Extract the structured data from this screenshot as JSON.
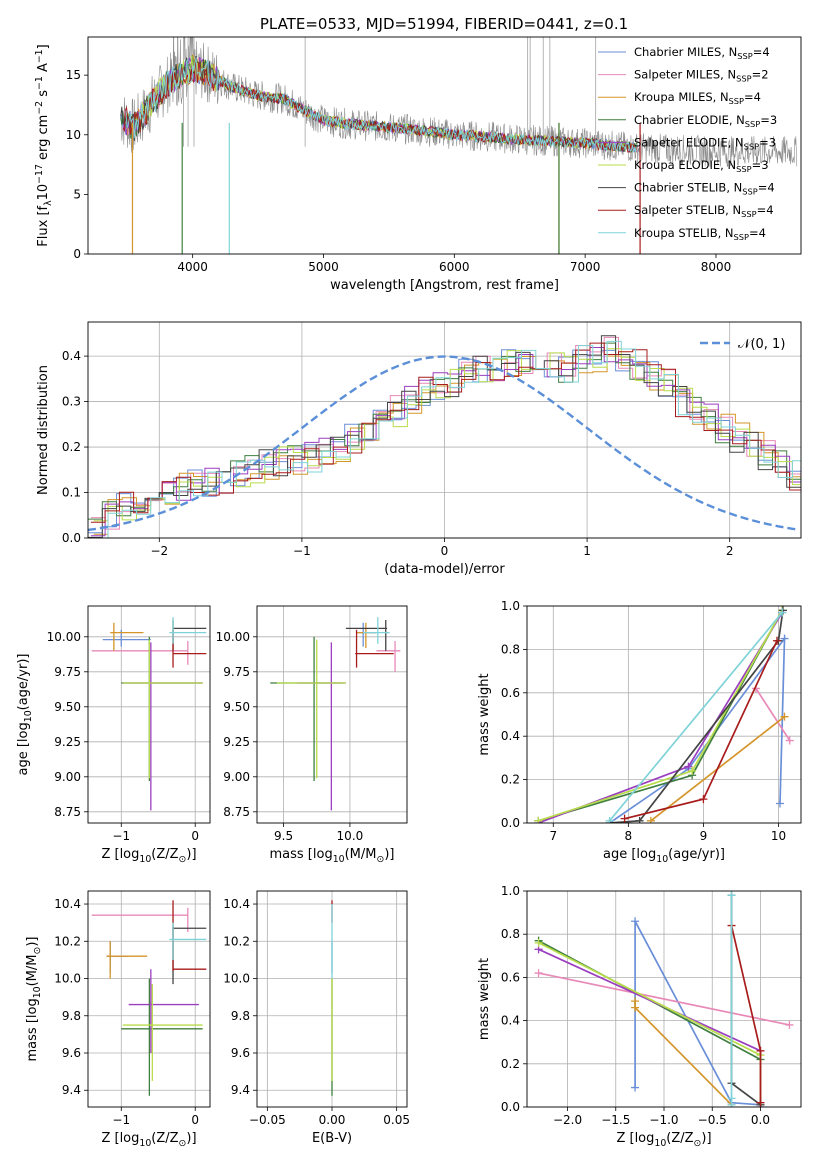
{
  "title": "PLATE=0533, MJD=51994, FIBERID=0441, z=0.1",
  "colors": {
    "Chabrier MILES": "#6a8fd8",
    "Salpeter MILES": "#e889b8",
    "Kroupa MILES": "#d4952a",
    "Chabrier ELODIE": "#3f7f3f",
    "Salpeter ELODIE": "#9b3fc0",
    "Kroupa ELODIE": "#b8dc4a",
    "Chabrier STELIB": "#444444",
    "Salpeter STELIB": "#a81c1c",
    "Kroupa STELIB": "#7fd3d8",
    "normal": "#5b8fd8",
    "data": "#8a8a8a"
  },
  "chart_data": [
    {
      "id": "spectrum",
      "type": "line",
      "xlabel": "wavelength [Angstrom, rest frame]",
      "ylabel_parts": [
        "Flux [f",
        "λ",
        "10",
        "−17",
        " erg cm",
        "−2",
        " s",
        "−1",
        " A",
        "−1",
        "]"
      ],
      "xlim": [
        3200,
        8650
      ],
      "ylim": [
        0,
        18.2
      ],
      "xticks": [
        4000,
        5000,
        6000,
        7000,
        8000
      ],
      "yticks": [
        0,
        5,
        10,
        15
      ],
      "grid": false,
      "legend": "top-right",
      "legend_entries": [
        {
          "label": "Chabrier MILES",
          "n": "4"
        },
        {
          "label": "Salpeter MILES",
          "n": "2"
        },
        {
          "label": "Kroupa MILES",
          "n": "4"
        },
        {
          "label": "Chabrier ELODIE",
          "n": "3"
        },
        {
          "label": "Salpeter ELODIE",
          "n": "3"
        },
        {
          "label": "Kroupa ELODIE",
          "n": "3"
        },
        {
          "label": "Chabrier STELIB",
          "n": "4"
        },
        {
          "label": "Salpeter STELIB",
          "n": "4"
        },
        {
          "label": "Kroupa STELIB",
          "n": "4"
        }
      ],
      "legend_subscript": "SSP",
      "model_x": [
        3450,
        3550,
        3700,
        3800,
        3900,
        4000,
        4100,
        4300,
        4500,
        4700,
        4860,
        5000,
        5200,
        5500,
        5800,
        6000,
        6300,
        6500,
        6700,
        7000,
        7300,
        7600,
        8000
      ],
      "model_y": [
        11.5,
        10.6,
        12.8,
        14.2,
        15.0,
        15.6,
        15.2,
        14.0,
        13.3,
        13.0,
        12.0,
        11.2,
        10.9,
        10.6,
        10.3,
        10.0,
        9.8,
        9.6,
        9.5,
        9.3,
        9.0,
        8.8,
        8.6
      ]
    },
    {
      "id": "residuals",
      "type": "histogram",
      "xlabel": "(data-model)/error",
      "ylabel": "Normed distribution",
      "xlim": [
        -2.5,
        2.5
      ],
      "ylim": [
        0,
        0.475
      ],
      "xticks": [
        -2,
        -1,
        0,
        1,
        2
      ],
      "xtick_labels": [
        "−2",
        "−1",
        "0",
        "1",
        "2"
      ],
      "yticks": [
        0.0,
        0.1,
        0.2,
        0.3,
        0.4
      ],
      "ytick_labels": [
        "0.0",
        "0.1",
        "0.2",
        "0.3",
        "0.4"
      ],
      "grid": true,
      "legend": "top-right",
      "normal_label": "𝒩(0, 1)",
      "bin_width": 0.1,
      "bin_start": -2.5,
      "base_hist": [
        0.03,
        0.05,
        0.07,
        0.08,
        0.09,
        0.1,
        0.11,
        0.12,
        0.12,
        0.13,
        0.14,
        0.15,
        0.16,
        0.17,
        0.17,
        0.18,
        0.19,
        0.2,
        0.22,
        0.24,
        0.26,
        0.28,
        0.3,
        0.32,
        0.33,
        0.34,
        0.36,
        0.37,
        0.38,
        0.39,
        0.39,
        0.4,
        0.38,
        0.37,
        0.39,
        0.4,
        0.41,
        0.4,
        0.38,
        0.36,
        0.34,
        0.3,
        0.28,
        0.26,
        0.24,
        0.22,
        0.2,
        0.18,
        0.16,
        0.14,
        0.13,
        0.12,
        0.11,
        0.1,
        0.09,
        0.08,
        0.07,
        0.06,
        0.05,
        0.04,
        0.035,
        0.035,
        0.03,
        0.03,
        0.025,
        0.02,
        0.02,
        0.02,
        0.015,
        0.015
      ]
    },
    {
      "id": "age-Z",
      "type": "errorbar",
      "xlabel_parts": [
        "Z [log",
        "10",
        "(Z/Z",
        "⊙",
        ")]"
      ],
      "ylabel_parts": [
        "age  [log",
        "10",
        "(age/yr)]"
      ],
      "xlim": [
        -1.45,
        0.2
      ],
      "ylim": [
        8.67,
        10.22
      ],
      "xticks": [
        -1,
        0
      ],
      "xtick_labels": [
        "−1",
        "0"
      ],
      "yticks": [
        8.75,
        9.0,
        9.25,
        9.5,
        9.75,
        10.0
      ],
      "ytick_labels": [
        "8.75",
        "9.00",
        "9.25",
        "9.50",
        "9.75",
        "10.00"
      ],
      "grid": true,
      "points": [
        {
          "m": "Chabrier MILES",
          "x": -1.0,
          "xe": [
            -1.25,
            -0.6
          ],
          "y": 9.98,
          "ye": [
            9.93,
            10.05
          ]
        },
        {
          "m": "Salpeter MILES",
          "x": -0.1,
          "xe": [
            -1.4,
            -0.1
          ],
          "y": 9.9,
          "ye": [
            9.8,
            9.97
          ]
        },
        {
          "m": "Kroupa MILES",
          "x": -1.1,
          "xe": [
            -1.15,
            -0.7
          ],
          "y": 10.03,
          "ye": [
            9.9,
            10.1
          ]
        },
        {
          "m": "Chabrier ELODIE",
          "x": -0.62,
          "xe": [
            -1.0,
            0.1
          ],
          "y": 9.67,
          "ye": [
            8.97,
            10.0
          ]
        },
        {
          "m": "Salpeter ELODIE",
          "x": -0.6,
          "xe": [
            -0.98,
            0.1
          ],
          "y": 9.67,
          "ye": [
            8.76,
            9.96
          ]
        },
        {
          "m": "Kroupa ELODIE",
          "x": -0.62,
          "xe": [
            -0.98,
            0.1
          ],
          "y": 9.67,
          "ye": [
            8.99,
            9.98
          ]
        },
        {
          "m": "Chabrier STELIB",
          "x": -0.3,
          "xe": [
            -0.3,
            0.15
          ],
          "y": 10.06,
          "ye": [
            9.9,
            10.12
          ]
        },
        {
          "m": "Salpeter STELIB",
          "x": -0.3,
          "xe": [
            -0.3,
            0.15
          ],
          "y": 9.88,
          "ye": [
            9.78,
            10.05
          ]
        },
        {
          "m": "Kroupa STELIB",
          "x": -0.3,
          "xe": [
            -0.35,
            0.15
          ],
          "y": 10.03,
          "ye": [
            9.95,
            10.14
          ]
        }
      ]
    },
    {
      "id": "age-mass",
      "type": "errorbar",
      "xlabel_parts": [
        "mass [log",
        "10",
        "(M/M",
        "⊙",
        ")]"
      ],
      "ylabel_parts": [],
      "xlim": [
        9.3,
        10.43
      ],
      "ylim": [
        8.67,
        10.22
      ],
      "xticks": [
        9.5,
        10.0
      ],
      "xtick_labels": [
        "9.5",
        "10.0"
      ],
      "yticks": [
        8.75,
        9.0,
        9.25,
        9.5,
        9.75,
        10.0
      ],
      "ytick_labels": [
        "8.75",
        "9.00",
        "9.25",
        "9.50",
        "9.75",
        "10.00"
      ],
      "grid": true,
      "points": [
        {
          "m": "Chabrier MILES",
          "x": 10.1,
          "xe": [
            10.05,
            10.2
          ],
          "y": 10.03,
          "ye": [
            9.93,
            10.1
          ]
        },
        {
          "m": "Salpeter MILES",
          "x": 10.34,
          "xe": [
            10.2,
            10.38
          ],
          "y": 9.9,
          "ye": [
            9.75,
            9.97
          ]
        },
        {
          "m": "Kroupa MILES",
          "x": 10.12,
          "xe": [
            10.05,
            10.2
          ],
          "y": 10.03,
          "ye": [
            9.92,
            10.1
          ]
        },
        {
          "m": "Chabrier ELODIE",
          "x": 9.73,
          "xe": [
            9.4,
            9.95
          ],
          "y": 9.67,
          "ye": [
            8.97,
            10.0
          ]
        },
        {
          "m": "Salpeter ELODIE",
          "x": 9.86,
          "xe": [
            9.6,
            9.97
          ],
          "y": 9.67,
          "ye": [
            8.76,
            9.96
          ]
        },
        {
          "m": "Kroupa ELODIE",
          "x": 9.75,
          "xe": [
            9.45,
            9.97
          ],
          "y": 9.67,
          "ye": [
            8.99,
            9.98
          ]
        },
        {
          "m": "Chabrier STELIB",
          "x": 10.27,
          "xe": [
            9.97,
            10.28
          ],
          "y": 10.06,
          "ye": [
            9.9,
            10.12
          ]
        },
        {
          "m": "Salpeter STELIB",
          "x": 10.05,
          "xe": [
            10.04,
            10.33
          ],
          "y": 9.88,
          "ye": [
            9.78,
            10.05
          ]
        },
        {
          "m": "Kroupa STELIB",
          "x": 10.21,
          "xe": [
            10.1,
            10.3
          ],
          "y": 10.03,
          "ye": [
            9.95,
            10.14
          ]
        }
      ]
    },
    {
      "id": "weight-age",
      "type": "line",
      "xlabel_parts": [
        "age  [log",
        "10",
        "(age/yr)]"
      ],
      "ylabel": "mass weight",
      "xlim": [
        6.65,
        10.3
      ],
      "ylim": [
        0,
        1.0
      ],
      "xticks": [
        7,
        8,
        9,
        10
      ],
      "xtick_labels": [
        "7",
        "8",
        "9",
        "10"
      ],
      "yticks": [
        0.0,
        0.2,
        0.4,
        0.6,
        0.8,
        1.0
      ],
      "ytick_labels": [
        "0.0",
        "0.2",
        "0.4",
        "0.6",
        "0.8",
        "1.0"
      ],
      "grid": true,
      "series": [
        {
          "m": "Chabrier MILES",
          "x": [
            7.75,
            8.8,
            10.08,
            10.02
          ],
          "y": [
            0.0,
            0.25,
            0.85,
            0.09
          ]
        },
        {
          "m": "Salpeter MILES",
          "x": [
            9.7,
            10.15
          ],
          "y": [
            0.62,
            0.38
          ]
        },
        {
          "m": "Kroupa MILES",
          "x": [
            8.3,
            10.08
          ],
          "y": [
            0.01,
            0.49
          ]
        },
        {
          "m": "Chabrier ELODIE",
          "x": [
            6.8,
            8.85,
            10.05
          ],
          "y": [
            0.01,
            0.22,
            0.98
          ]
        },
        {
          "m": "Salpeter ELODIE",
          "x": [
            6.8,
            8.8,
            10.05
          ],
          "y": [
            0.0,
            0.26,
            0.97
          ]
        },
        {
          "m": "Kroupa ELODIE",
          "x": [
            6.8,
            8.85,
            10.05
          ],
          "y": [
            0.01,
            0.24,
            0.98
          ]
        },
        {
          "m": "Chabrier STELIB",
          "x": [
            7.75,
            8.15,
            10.0,
            10.06
          ],
          "y": [
            0.0,
            0.01,
            0.84,
            0.98
          ]
        },
        {
          "m": "Salpeter STELIB",
          "x": [
            7.95,
            9.0,
            9.98
          ],
          "y": [
            0.02,
            0.11,
            0.84
          ]
        },
        {
          "m": "Kroupa STELIB",
          "x": [
            7.75,
            10.05
          ],
          "y": [
            0.01,
            0.97
          ]
        }
      ]
    },
    {
      "id": "mass-Z",
      "type": "errorbar",
      "xlabel_parts": [
        "Z [log",
        "10",
        "(Z/Z",
        "⊙",
        ")]"
      ],
      "ylabel_parts": [
        "mass [log",
        "10",
        "(M/M",
        "⊙",
        ")]"
      ],
      "xlim": [
        -1.45,
        0.2
      ],
      "ylim": [
        9.31,
        10.47
      ],
      "xticks": [
        -1,
        0
      ],
      "xtick_labels": [
        "−1",
        "0"
      ],
      "yticks": [
        9.4,
        9.6,
        9.8,
        10.0,
        10.2,
        10.4
      ],
      "ytick_labels": [
        "9.4",
        "9.6",
        "9.8",
        "10.0",
        "10.2",
        "10.4"
      ],
      "grid": true,
      "points": [
        {
          "m": "Chabrier MILES",
          "x": -1.15,
          "xe": [
            -1.2,
            -0.9
          ],
          "y": 10.12,
          "ye": [
            10.03,
            10.2
          ]
        },
        {
          "m": "Salpeter MILES",
          "x": -0.1,
          "xe": [
            -1.4,
            -0.1
          ],
          "y": 10.34,
          "ye": [
            10.25,
            10.38
          ]
        },
        {
          "m": "Kroupa MILES",
          "x": -1.15,
          "xe": [
            -1.2,
            -0.65
          ],
          "y": 10.12,
          "ye": [
            10.0,
            10.2
          ]
        },
        {
          "m": "Chabrier ELODIE",
          "x": -0.62,
          "xe": [
            -1.0,
            0.1
          ],
          "y": 9.73,
          "ye": [
            9.37,
            10.0
          ]
        },
        {
          "m": "Salpeter ELODIE",
          "x": -0.6,
          "xe": [
            -0.9,
            0.05
          ],
          "y": 9.86,
          "ye": [
            9.6,
            10.05
          ]
        },
        {
          "m": "Kroupa ELODIE",
          "x": -0.58,
          "xe": [
            -0.98,
            0.1
          ],
          "y": 9.75,
          "ye": [
            9.45,
            9.97
          ]
        },
        {
          "m": "Chabrier STELIB",
          "x": -0.3,
          "xe": [
            -0.3,
            0.15
          ],
          "y": 10.27,
          "ye": [
            9.97,
            10.28
          ]
        },
        {
          "m": "Salpeter STELIB",
          "x": -0.3,
          "xe": [
            -0.3,
            0.15
          ],
          "y": 10.05,
          "ye": [
            10.04,
            10.42
          ]
        },
        {
          "m": "Kroupa STELIB",
          "x": -0.3,
          "xe": [
            -0.35,
            0.15
          ],
          "y": 10.21,
          "ye": [
            10.1,
            10.3
          ]
        }
      ]
    },
    {
      "id": "mass-ebv",
      "type": "errorbar",
      "xlabel": "E(B-V)",
      "ylabel_parts": [],
      "xlim": [
        -0.058,
        0.058
      ],
      "ylim": [
        9.31,
        10.47
      ],
      "xticks": [
        -0.05,
        0.0,
        0.05
      ],
      "xtick_labels": [
        "−0.05",
        "0.00",
        "0.05"
      ],
      "yticks": [
        9.4,
        9.6,
        9.8,
        10.0,
        10.2,
        10.4
      ],
      "ytick_labels": [
        "9.4",
        "9.6",
        "9.8",
        "10.0",
        "10.2",
        "10.4"
      ],
      "grid": true,
      "points": [
        {
          "m": "Chabrier MILES",
          "x": 0.0,
          "xe": [
            0.0,
            0.0
          ],
          "y": 10.12,
          "ye": [
            10.03,
            10.2
          ]
        },
        {
          "m": "Chabrier ELODIE",
          "x": 0.0,
          "xe": [
            0.0,
            0.0
          ],
          "y": 9.73,
          "ye": [
            9.37,
            10.0
          ]
        },
        {
          "m": "Kroupa ELODIE",
          "x": 0.0,
          "xe": [
            0.0,
            0.0
          ],
          "y": 9.75,
          "ye": [
            9.45,
            10.0
          ]
        },
        {
          "m": "Salpeter STELIB",
          "x": 0.0,
          "xe": [
            0.0,
            0.0
          ],
          "y": 10.35,
          "ye": [
            10.3,
            10.42
          ]
        },
        {
          "m": "Kroupa STELIB",
          "x": 0.0,
          "xe": [
            0.0,
            0.0
          ],
          "y": 10.21,
          "ye": [
            10.0,
            10.4
          ]
        }
      ]
    },
    {
      "id": "weight-Z",
      "type": "line",
      "xlabel_parts": [
        "Z [log",
        "10",
        "(Z/Z",
        "⊙",
        ")]"
      ],
      "ylabel": "mass weight",
      "xlim": [
        -2.42,
        0.42
      ],
      "ylim": [
        0,
        1.0
      ],
      "xticks": [
        -2.0,
        -1.5,
        -1.0,
        -0.5,
        0.0
      ],
      "xtick_labels": [
        "−2.0",
        "−1.5",
        "−1.0",
        "−0.5",
        "0.0"
      ],
      "yticks": [
        0.0,
        0.2,
        0.4,
        0.6,
        0.8,
        1.0
      ],
      "ytick_labels": [
        "0.0",
        "0.2",
        "0.4",
        "0.6",
        "0.8",
        "1.0"
      ],
      "grid": true,
      "series": [
        {
          "m": "Chabrier MILES",
          "x": [
            -1.3,
            -1.3,
            -0.3,
            0.0
          ],
          "y": [
            0.09,
            0.86,
            0.02,
            0.01
          ]
        },
        {
          "m": "Salpeter MILES",
          "x": [
            -2.3,
            0.3
          ],
          "y": [
            0.62,
            0.38
          ]
        },
        {
          "m": "Kroupa MILES",
          "x": [
            -1.3,
            -1.3,
            -0.3
          ],
          "y": [
            0.49,
            0.46,
            0.01
          ]
        },
        {
          "m": "Chabrier ELODIE",
          "x": [
            -2.3,
            0.0,
            0.0
          ],
          "y": [
            0.77,
            0.22,
            0.01
          ]
        },
        {
          "m": "Salpeter ELODIE",
          "x": [
            -2.3,
            0.0,
            0.0
          ],
          "y": [
            0.73,
            0.26,
            0.0
          ]
        },
        {
          "m": "Kroupa ELODIE",
          "x": [
            -2.3,
            0.0,
            0.0
          ],
          "y": [
            0.76,
            0.24,
            0.01
          ]
        },
        {
          "m": "Chabrier STELIB",
          "x": [
            -0.3,
            -0.3,
            0.0
          ],
          "y": [
            0.98,
            0.11,
            0.01
          ]
        },
        {
          "m": "Salpeter STELIB",
          "x": [
            -0.3,
            0.0,
            0.0
          ],
          "y": [
            0.84,
            0.26,
            0.02
          ]
        },
        {
          "m": "Kroupa STELIB",
          "x": [
            -0.3,
            -0.3,
            -0.3
          ],
          "y": [
            0.98,
            0.04,
            0.01
          ]
        }
      ]
    }
  ]
}
